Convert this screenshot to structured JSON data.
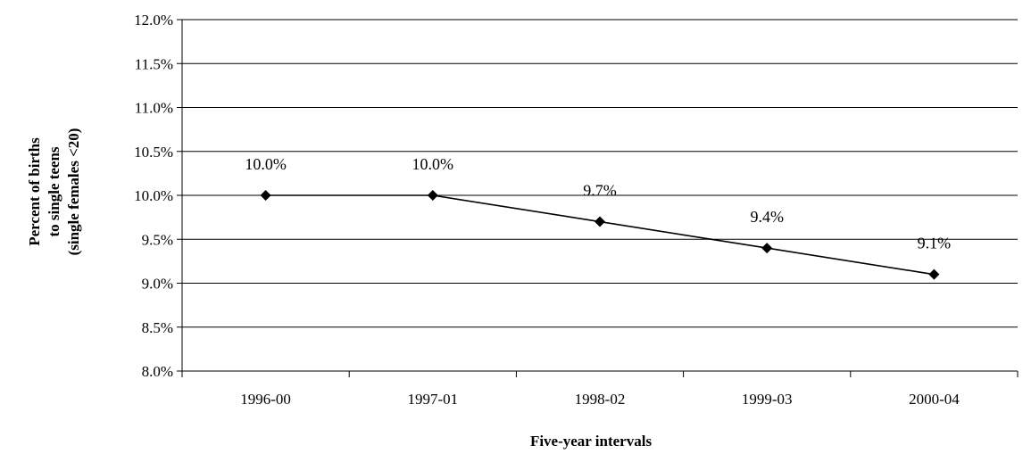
{
  "chart_data": {
    "type": "line",
    "categories": [
      "1996-00",
      "1997-01",
      "1998-02",
      "1999-03",
      "2000-04"
    ],
    "series": [
      {
        "values": [
          10.0,
          10.0,
          9.7,
          9.4,
          9.1
        ],
        "data_labels": [
          "10.0%",
          "10.0%",
          "9.7%",
          "9.4%",
          "9.1%"
        ]
      }
    ],
    "ylim": [
      8.0,
      12.0
    ],
    "y_ticks": [
      8.0,
      8.5,
      9.0,
      9.5,
      10.0,
      10.5,
      11.0,
      11.5,
      12.0
    ],
    "y_tick_labels": [
      "8.0%",
      "8.5%",
      "9.0%",
      "9.5%",
      "10.0%",
      "10.5%",
      "11.0%",
      "11.5%",
      "12.0%"
    ],
    "xlabel": "Five-year intervals",
    "ylabel_lines": [
      "Percent of births",
      "to single teens",
      "(single females <20)"
    ],
    "grid": "horizontal",
    "line_color": "#000000",
    "marker": "diamond"
  }
}
